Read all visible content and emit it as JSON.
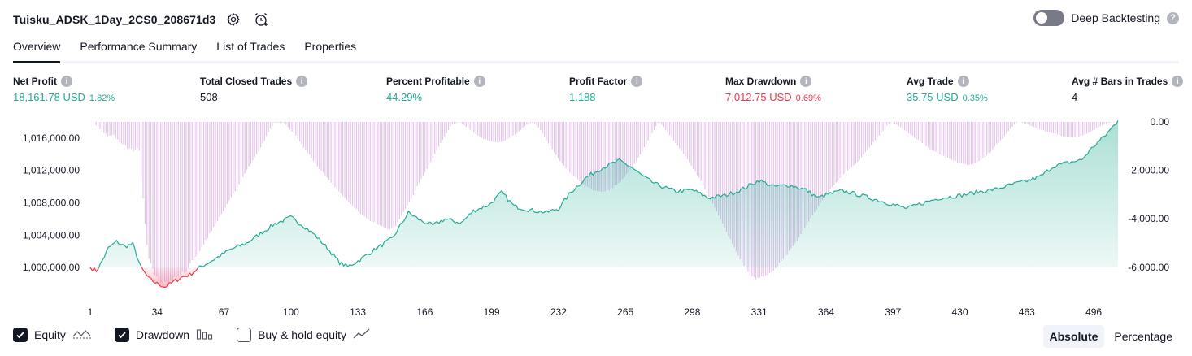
{
  "header": {
    "title": "Tuisku_ADSK_1Day_2CS0_208671d3",
    "settings_icon": "gear-icon",
    "alert_icon": "alarm-clock-plus-icon"
  },
  "deep_backtesting": {
    "label": "Deep Backtesting",
    "enabled": false,
    "help_icon": "question-icon"
  },
  "tabs": [
    {
      "label": "Overview",
      "active": true
    },
    {
      "label": "Performance Summary",
      "active": false
    },
    {
      "label": "List of Trades",
      "active": false
    },
    {
      "label": "Properties",
      "active": false
    }
  ],
  "metrics": [
    {
      "label": "Net Profit",
      "value": "18,161.78 USD",
      "pct": "1.82%",
      "color": "#22ab94"
    },
    {
      "label": "Total Closed Trades",
      "value": "508",
      "pct": "",
      "color": "#131722"
    },
    {
      "label": "Percent Profitable",
      "value": "44.29%",
      "pct": "",
      "color": "#22ab94"
    },
    {
      "label": "Profit Factor",
      "value": "1.188",
      "pct": "",
      "color": "#22ab94"
    },
    {
      "label": "Max Drawdown",
      "value": "7,012.75 USD",
      "pct": "0.69%",
      "color": "#f23645"
    },
    {
      "label": "Avg Trade",
      "value": "35.75 USD",
      "pct": "0.35%",
      "color": "#22ab94"
    },
    {
      "label": "Avg # Bars in Trades",
      "value": "4",
      "pct": "",
      "color": "#131722"
    }
  ],
  "chart_data": {
    "type": "line",
    "series": [
      {
        "name": "Equity",
        "kind": "line+area",
        "color": "#22ab94",
        "negative_color": "#f23645"
      },
      {
        "name": "Drawdown",
        "kind": "bar",
        "color": "#ce93d8"
      }
    ],
    "x_ticks": [
      "1",
      "34",
      "67",
      "100",
      "133",
      "166",
      "199",
      "232",
      "265",
      "298",
      "331",
      "364",
      "397",
      "430",
      "463",
      "496"
    ],
    "x_range": [
      1,
      508
    ],
    "y_left_ticks": [
      "1,016,000.00",
      "1,012,000.00",
      "1,008,000.00",
      "1,004,000.00",
      "1,000,000.00"
    ],
    "y_left_values": [
      1016000,
      1012000,
      1008000,
      1004000,
      1000000
    ],
    "y_left_range": [
      997000,
      1018000
    ],
    "y_right_ticks": [
      "0.00",
      "-2,000.00",
      "-4,000.00",
      "-6,000.00"
    ],
    "y_right_values": [
      0,
      -2000,
      -4000,
      -6000
    ],
    "y_right_range": [
      -7012.75,
      0
    ],
    "equity_anchors": [
      [
        1,
        1000000
      ],
      [
        4,
        999600
      ],
      [
        6,
        1000400
      ],
      [
        10,
        1002400
      ],
      [
        14,
        1003200
      ],
      [
        18,
        1002600
      ],
      [
        22,
        1002900
      ],
      [
        26,
        1000000
      ],
      [
        30,
        998600
      ],
      [
        34,
        998000
      ],
      [
        38,
        997600
      ],
      [
        42,
        998200
      ],
      [
        46,
        998800
      ],
      [
        50,
        999100
      ],
      [
        55,
        1000000
      ],
      [
        62,
        1001000
      ],
      [
        70,
        1002200
      ],
      [
        78,
        1003000
      ],
      [
        85,
        1004200
      ],
      [
        92,
        1005400
      ],
      [
        100,
        1006200
      ],
      [
        106,
        1005200
      ],
      [
        112,
        1004000
      ],
      [
        118,
        1002400
      ],
      [
        124,
        1000600
      ],
      [
        128,
        1000100
      ],
      [
        133,
        1000800
      ],
      [
        140,
        1002000
      ],
      [
        150,
        1003600
      ],
      [
        158,
        1006800
      ],
      [
        164,
        1005800
      ],
      [
        170,
        1005200
      ],
      [
        176,
        1006000
      ],
      [
        184,
        1005500
      ],
      [
        190,
        1007000
      ],
      [
        198,
        1007800
      ],
      [
        204,
        1009300
      ],
      [
        210,
        1007600
      ],
      [
        218,
        1007100
      ],
      [
        226,
        1006800
      ],
      [
        232,
        1007300
      ],
      [
        238,
        1009300
      ],
      [
        246,
        1011200
      ],
      [
        254,
        1012400
      ],
      [
        262,
        1013200
      ],
      [
        268,
        1012400
      ],
      [
        274,
        1011200
      ],
      [
        280,
        1010300
      ],
      [
        290,
        1009400
      ],
      [
        298,
        1009600
      ],
      [
        306,
        1008600
      ],
      [
        314,
        1008900
      ],
      [
        322,
        1009600
      ],
      [
        331,
        1010800
      ],
      [
        338,
        1010000
      ],
      [
        346,
        1010200
      ],
      [
        354,
        1009600
      ],
      [
        360,
        1008600
      ],
      [
        364,
        1009000
      ],
      [
        372,
        1009500
      ],
      [
        380,
        1009000
      ],
      [
        390,
        1008300
      ],
      [
        397,
        1007800
      ],
      [
        404,
        1007300
      ],
      [
        412,
        1008000
      ],
      [
        420,
        1008600
      ],
      [
        430,
        1008900
      ],
      [
        440,
        1009400
      ],
      [
        448,
        1009700
      ],
      [
        456,
        1010300
      ],
      [
        463,
        1010700
      ],
      [
        470,
        1011300
      ],
      [
        476,
        1012500
      ],
      [
        484,
        1013000
      ],
      [
        490,
        1013300
      ],
      [
        496,
        1015000
      ],
      [
        502,
        1016400
      ],
      [
        508,
        1018161.78
      ]
    ],
    "drawdown_bars": [
      0,
      0,
      -4,
      -138,
      -192,
      -307,
      -442,
      -462,
      -497,
      -580,
      -569,
      -547,
      -545,
      -681,
      -721,
      -843,
      -896,
      -938,
      -980,
      -1086,
      -1101,
      -1102,
      -1225,
      -1149,
      -1081,
      -1188,
      -2217,
      -3152,
      -4199,
      -5074,
      -5656,
      -5833,
      -6061,
      -6322,
      -6377,
      -6552,
      -6640,
      -6675,
      -6589,
      -6602,
      -6636,
      -6541,
      -6524,
      -6397,
      -6430,
      -6369,
      -6306,
      -6188,
      -6221,
      -6200,
      -6028,
      -5834,
      -5712,
      -5595,
      -5552,
      -5461,
      -5327,
      -5168,
      -5058,
      -4873,
      -4810,
      -4608,
      -4504,
      -4323,
      -4193,
      -4086,
      -3933,
      -3803,
      -3680,
      -3543,
      -3388,
      -3245,
      -3110,
      -2972,
      -2862,
      -2718,
      -2572,
      -2423,
      -2265,
      -2135,
      -1969,
      -1826,
      -1720,
      -1587,
      -1458,
      -1331,
      -1202,
      -1057,
      -888,
      -785,
      -580,
      -440,
      -276,
      -170,
      -32,
      -32,
      -29,
      -32,
      -29,
      -31,
      -119,
      -216,
      -313,
      -400,
      -463,
      -559,
      -696,
      -801,
      -912,
      -1061,
      -1146,
      -1279,
      -1358,
      -1501,
      -1617,
      -1721,
      -1835,
      -1937,
      -2023,
      -2085,
      -2202,
      -2291,
      -2406,
      -2506,
      -2586,
      -2692,
      -2776,
      -2867,
      -2953,
      -3063,
      -3129,
      -3224,
      -3314,
      -3387,
      -3476,
      -3537,
      -3599,
      -3703,
      -3789,
      -3836,
      -3899,
      -3972,
      -4013,
      -4093,
      -4119,
      -4137,
      -4201,
      -4241,
      -4271,
      -4309,
      -4344,
      -4358,
      -4424,
      -4439,
      -4403,
      -4360,
      -4300,
      -4170,
      -4020,
      -3879,
      -3720,
      -3576,
      -3443,
      -3296,
      -3176,
      -3027,
      -2841,
      -2655,
      -2512,
      -2345,
      -2208,
      -2074,
      -1937,
      -1782,
      -1662,
      -1488,
      -1324,
      -1162,
      -1022,
      -876,
      -738,
      -601,
      -471,
      -333,
      -181,
      -98,
      -71,
      -46,
      -5,
      -14,
      -62,
      -125,
      -204,
      -274,
      -329,
      -388,
      -446,
      -503,
      -562,
      -606,
      -659,
      -700,
      -719,
      -750,
      -781,
      -800,
      -822,
      -836,
      -841,
      -831,
      -817,
      -795,
      -759,
      -714,
      -660,
      -617,
      -560,
      -501,
      -449,
      -384,
      -321,
      -232,
      -191,
      -107,
      -82,
      -32,
      -37,
      -52,
      -117,
      -225,
      -332,
      -484,
      -620,
      -758,
      -891,
      -1005,
      -1124,
      -1262,
      -1364,
      -1494,
      -1620,
      -1714,
      -1798,
      -1922,
      -2002,
      -2093,
      -2165,
      -2234,
      -2296,
      -2368,
      -2451,
      -2508,
      -2575,
      -2649,
      -2675,
      -2714,
      -2754,
      -2825,
      -2840,
      -2845,
      -2863,
      -2876,
      -2883,
      -2860,
      -2804,
      -2825,
      -2750,
      -2720,
      -2618,
      -2593,
      -2515,
      -2441,
      -2355,
      -2263,
      -2151,
      -2079,
      -1967,
      -1872,
      -1730,
      -1626,
      -1480,
      -1351,
      -1219,
      -1051,
      -907,
      -764,
      -623,
      -467,
      -333,
      -178,
      -41,
      -38,
      -115,
      -214,
      -334,
      -422,
      -546,
      -663,
      -772,
      -876,
      -983,
      -1095,
      -1208,
      -1312,
      -1418,
      -1537,
      -1658,
      -1802,
      -1938,
      -2059,
      -2184,
      -2304,
      -2452,
      -2612,
      -2787,
      -2929,
      -3085,
      -3233,
      -3372,
      -3538,
      -3689,
      -3855,
      -4023,
      -4191,
      -4360,
      -4534,
      -4696,
      -4839,
      -5018,
      -5188,
      -5355,
      -5513,
      -5667,
      -5788,
      -5935,
      -6100,
      -6199,
      -6343,
      -6371,
      -6402,
      -6496,
      -6437,
      -6437,
      -6378,
      -6390,
      -6330,
      -6304,
      -6238,
      -6202,
      -6143,
      -6036,
      -5951,
      -5808,
      -5742,
      -5662,
      -5551,
      -5483,
      -5315,
      -5221,
      -5128,
      -4994,
      -4909,
      -4765,
      -4630,
      -4501,
      -4372,
      -4270,
      -4120,
      -3972,
      -3839,
      -3722,
      -3610,
      -3479,
      -3346,
      -3232,
      -3128,
      -3012,
      -2916,
      -2775,
      -2689,
      -2607,
      -2510,
      -2430,
      -2315,
      -2234,
      -2165,
      -2085,
      -2013,
      -1943,
      -1869,
      -1786,
      -1713,
      -1648,
      -1563,
      -1461,
      -1346,
      -1243,
      -1166,
      -1052,
      -965,
      -838,
      -757,
      -654,
      -562,
      -438,
      -362,
      -247,
      -152,
      -54,
      -12,
      -4,
      -73,
      -111,
      -182,
      -223,
      -283,
      -345,
      -389,
      -465,
      -498,
      -572,
      -654,
      -710,
      -744,
      -807,
      -878,
      -941,
      -1011,
      -1046,
      -1118,
      -1159,
      -1199,
      -1228,
      -1311,
      -1345,
      -1366,
      -1396,
      -1483,
      -1478,
      -1528,
      -1567,
      -1597,
      -1616,
      -1672,
      -1681,
      -1707,
      -1724,
      -1747,
      -1777,
      -1780,
      -1739,
      -1736,
      -1707,
      -1652,
      -1614,
      -1583,
      -1496,
      -1448,
      -1368,
      -1274,
      -1216,
      -1128,
      -1024,
      -916,
      -856,
      -762,
      -694,
      -576,
      -492,
      -375,
      -294,
      -196,
      -99,
      -36,
      -5,
      -3,
      -24,
      -55,
      -81,
      -100,
      -147,
      -181,
      -197,
      -246,
      -269,
      -300,
      -330,
      -350,
      -401,
      -418,
      -412,
      -451,
      -474,
      -471,
      -520,
      -538,
      -573,
      -586,
      -593,
      -609,
      -612,
      -642,
      -648,
      -636,
      -623,
      -596,
      -573,
      -550,
      -522,
      -490,
      -437,
      -395,
      -354,
      -317,
      -255,
      -221,
      -177,
      -132,
      -95,
      -64,
      -42,
      -22,
      -12,
      -15,
      -5,
      0
    ]
  },
  "legend": [
    {
      "label": "Equity",
      "checked": true,
      "icon": "line-area-icon"
    },
    {
      "label": "Drawdown",
      "checked": true,
      "icon": "bars-icon"
    },
    {
      "label": "Buy & hold equity",
      "checked": false,
      "icon": "line-trend-icon"
    }
  ],
  "modes": [
    {
      "label": "Absolute",
      "active": true
    },
    {
      "label": "Percentage",
      "active": false
    }
  ]
}
